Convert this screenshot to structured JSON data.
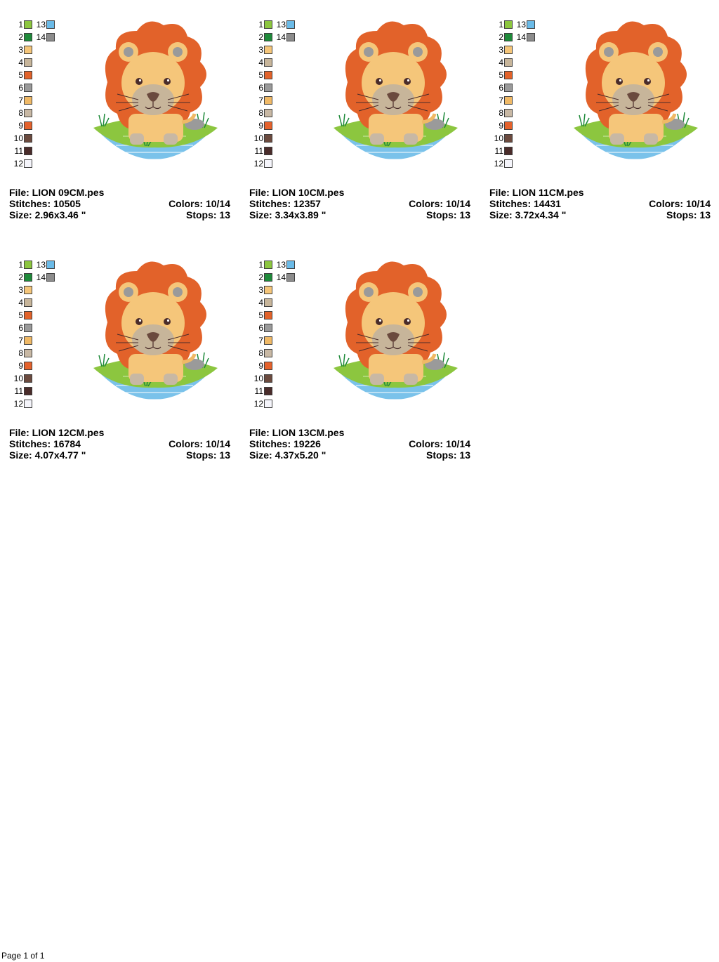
{
  "colors": {
    "1": "#8cc63f",
    "2": "#1e8a3a",
    "3": "#f5c67a",
    "4": "#c7b59a",
    "5": "#e2622a",
    "6": "#9a9a9a",
    "7": "#f0b966",
    "8": "#c8b8a4",
    "9": "#e5622c",
    "10": "#6b4a3e",
    "11": "#4a2c2a",
    "12": "#f5f5fb",
    "13": "#6bbbe8",
    "14": "#8c8c8c"
  },
  "swatch_labels": [
    "1",
    "2",
    "3",
    "4",
    "5",
    "6",
    "7",
    "8",
    "9",
    "10",
    "11",
    "12"
  ],
  "swatch_labels_right": [
    "13",
    "14"
  ],
  "designs": [
    {
      "file": "File: LION 09CM.pes",
      "stitches": "Stitches: 10505",
      "size": "Size: 2.96x3.46 \"",
      "colors": "Colors: 10/14",
      "stops": "Stops: 13"
    },
    {
      "file": "File: LION 10CM.pes",
      "stitches": "Stitches: 12357",
      "size": "Size: 3.34x3.89 \"",
      "colors": "Colors: 10/14",
      "stops": "Stops: 13"
    },
    {
      "file": "File: LION 11CM.pes",
      "stitches": "Stitches: 14431",
      "size": "Size: 3.72x4.34 \"",
      "colors": "Colors: 10/14",
      "stops": "Stops: 13"
    },
    {
      "file": "File: LION 12CM.pes",
      "stitches": "Stitches: 16784",
      "size": "Size: 4.07x4.77 \"",
      "colors": "Colors: 10/14",
      "stops": "Stops: 13"
    },
    {
      "file": "File: LION 13CM.pes",
      "stitches": "Stitches: 19226",
      "size": "Size: 4.37x5.20 \"",
      "colors": "Colors: 10/14",
      "stops": "Stops: 13"
    }
  ],
  "footer": "Page 1 of 1"
}
